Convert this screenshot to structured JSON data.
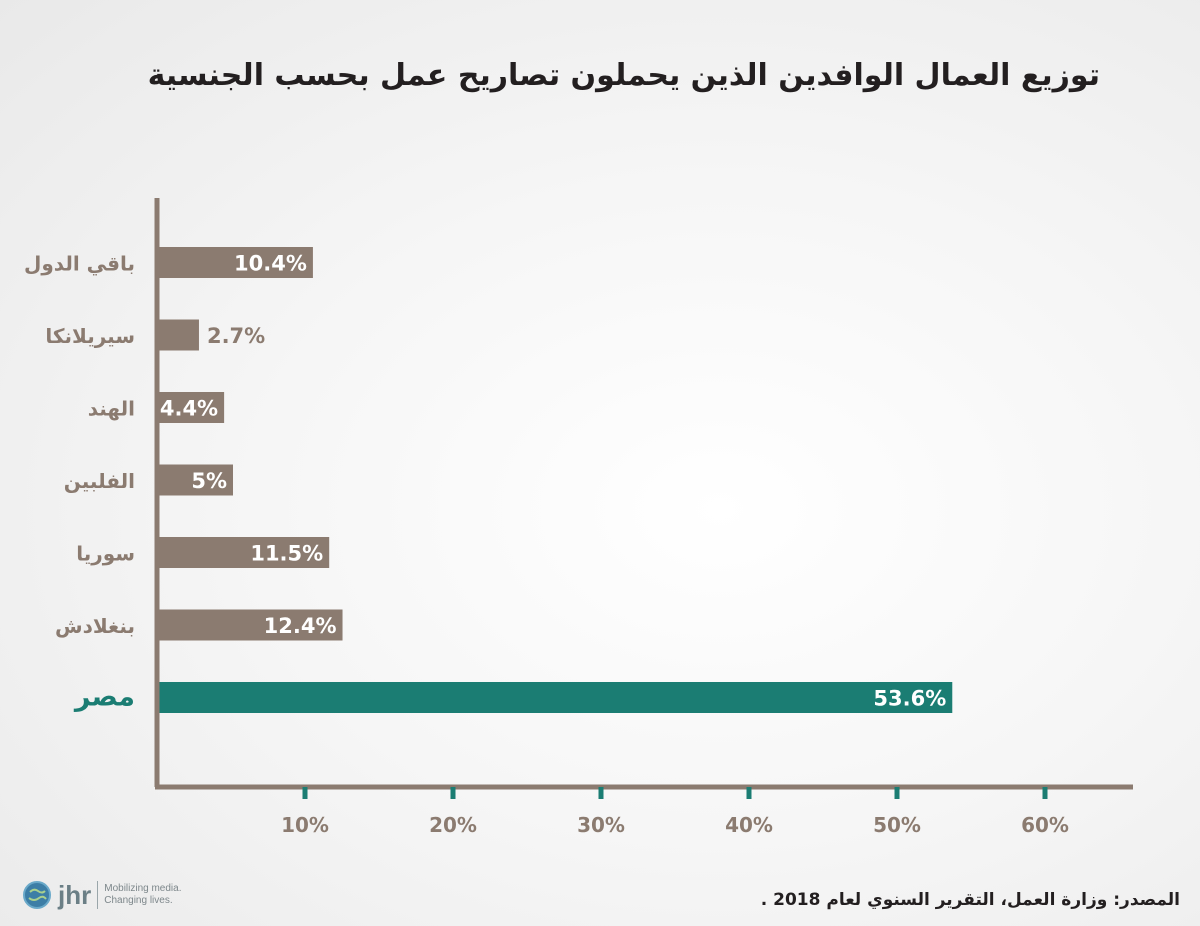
{
  "title": "توزيع العمال الوافدين الذين يحملون تصاريح عمل بحسب الجنسية",
  "source": "المصدر: وزارة العمل، التقرير السنوي لعام 2018 .",
  "logo": {
    "mark": "jhr",
    "tagline_1": "Mobilizing media.",
    "tagline_2": "Changing lives."
  },
  "colors": {
    "bar": "#8b7b70",
    "highlight": "#1b7d73",
    "axis": "#8b7b70",
    "tick": "#1b7d73",
    "tick_label": "#8b7b70",
    "category_label": "#8b7b70"
  },
  "chart_data": {
    "type": "bar",
    "orientation": "horizontal",
    "categories": [
      "باقي الدول",
      "سيريلانكا",
      "الهند",
      "الفلبين",
      "سوريا",
      "بنغلادش",
      "مصر"
    ],
    "values": [
      10.4,
      2.7,
      4.4,
      5,
      11.5,
      12.4,
      53.6
    ],
    "data_labels": [
      "10.4%",
      "2.7%",
      "4.4%",
      "5%",
      "11.5%",
      "12.4%",
      "53.6%"
    ],
    "highlight_index": 6,
    "x_ticks": [
      10,
      20,
      30,
      40,
      50,
      60
    ],
    "x_tick_labels": [
      "10%",
      "20%",
      "30%",
      "40%",
      "50%",
      "60%"
    ],
    "xlim": [
      0,
      66
    ],
    "grid": false
  }
}
